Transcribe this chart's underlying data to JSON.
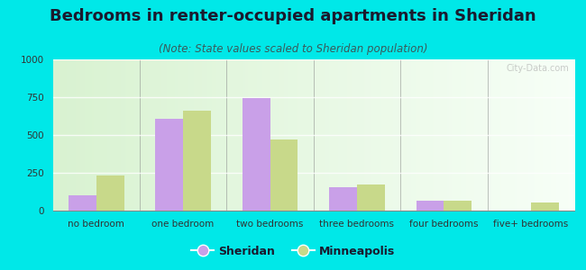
{
  "title": "Bedrooms in renter-occupied apartments in Sheridan",
  "subtitle": "(Note: State values scaled to Sheridan population)",
  "categories": [
    "no bedroom",
    "one bedroom",
    "two bedrooms",
    "three bedrooms",
    "four bedrooms",
    "five+ bedrooms"
  ],
  "sheridan_values": [
    100,
    610,
    745,
    155,
    65,
    0
  ],
  "minneapolis_values": [
    230,
    660,
    470,
    175,
    65,
    55
  ],
  "sheridan_color": "#c9a0e8",
  "minneapolis_color": "#c8d98a",
  "ylim": [
    0,
    1000
  ],
  "yticks": [
    0,
    250,
    500,
    750,
    1000
  ],
  "background_outer": "#00e8e8",
  "title_color": "#1a1a2e",
  "subtitle_color": "#3a5a5a",
  "title_fontsize": 13,
  "subtitle_fontsize": 8.5,
  "tick_fontsize": 7.5,
  "legend_fontsize": 9,
  "bar_width": 0.32
}
